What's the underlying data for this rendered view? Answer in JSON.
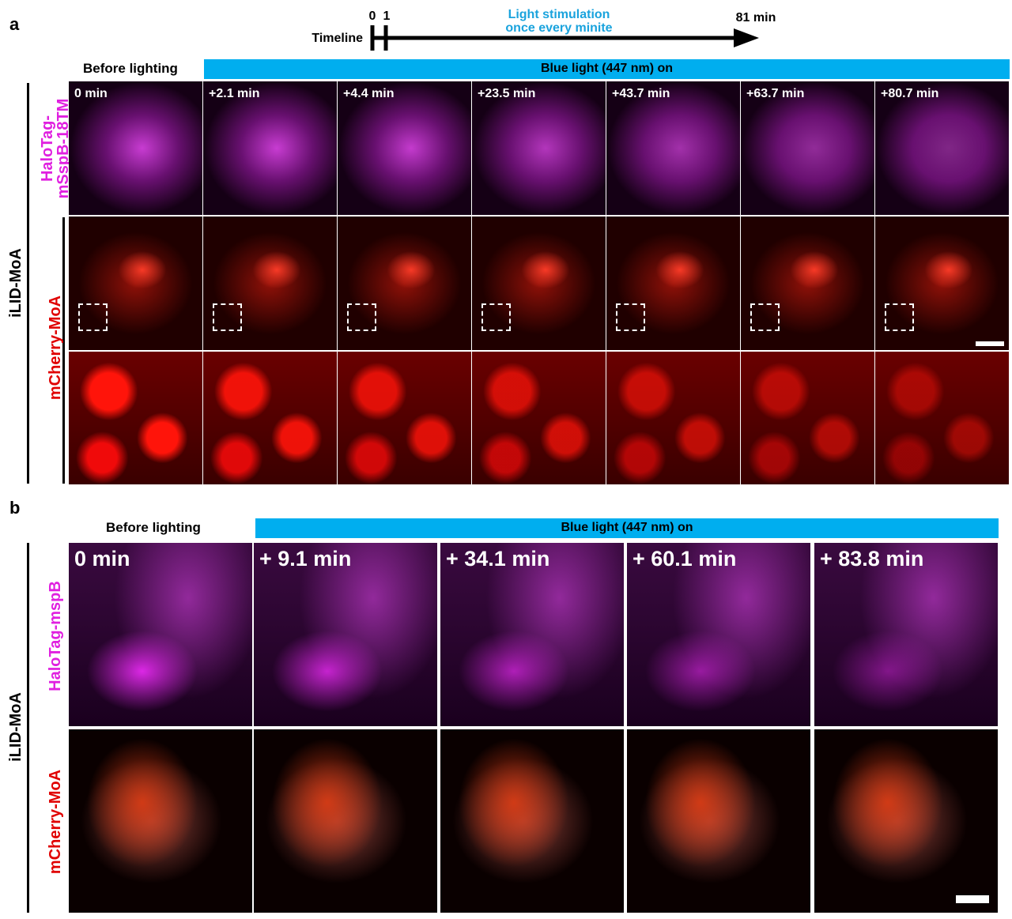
{
  "panel_a": {
    "label": "a",
    "timeline": {
      "label": "Timeline",
      "start": "0",
      "first": "1",
      "end": "81 min",
      "note": [
        "Light stimulation",
        "once every minite"
      ]
    },
    "before": "Before lighting",
    "light": "Blue light (447 nm) on",
    "construct": "iLID-MoA",
    "row_labels": [
      [
        "HaloTag-",
        "mSspB-18TM"
      ],
      [
        "mCherry-MoA"
      ]
    ],
    "times": [
      "0 min",
      "+2.1 min",
      "+4.4 min",
      "+23.5 min",
      "+43.7 min",
      "+63.7 min",
      "+80.7 min"
    ]
  },
  "panel_b": {
    "label": "b",
    "before": "Before lighting",
    "light": "Blue light (447 nm) on",
    "construct": "iLID-MoA",
    "row_labels": [
      "HaloTag-mspB",
      "mCherry-MoA"
    ],
    "times": [
      "0 min",
      "+ 9.1 min",
      "+ 34.1 min",
      "+ 60.1 min",
      "+ 83.8 min"
    ]
  }
}
